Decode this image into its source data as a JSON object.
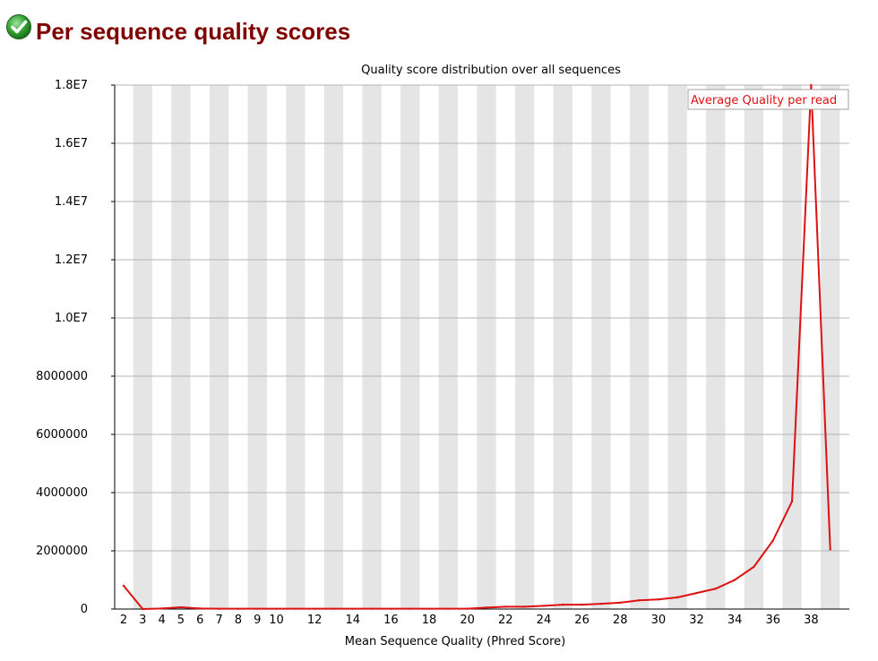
{
  "module": {
    "title": "Per sequence quality scores",
    "status_icon": "check-circle-icon",
    "status": "pass"
  },
  "colors": {
    "title": "#800000",
    "band": "#e5e5e5",
    "grid": "#b4b4b4",
    "line": "#dd1111",
    "icon_green": "#2fa12f"
  },
  "chart_data": {
    "type": "line",
    "title": "Quality score distribution over all sequences",
    "xlabel": "Mean Sequence Quality (Phred Score)",
    "ylabel": "",
    "x": [
      2,
      3,
      4,
      5,
      6,
      7,
      8,
      9,
      10,
      11,
      12,
      13,
      14,
      15,
      16,
      17,
      18,
      19,
      20,
      21,
      22,
      23,
      24,
      25,
      26,
      27,
      28,
      29,
      30,
      31,
      32,
      33,
      34,
      35,
      36,
      37,
      38,
      39
    ],
    "xlim": [
      2,
      39
    ],
    "x_tick_labels": [
      "2",
      "3",
      "4",
      "5",
      "6",
      "7",
      "8",
      "9",
      "10",
      "12",
      "14",
      "16",
      "18",
      "20",
      "22",
      "24",
      "26",
      "28",
      "30",
      "32",
      "34",
      "36",
      "38"
    ],
    "ylim": [
      0,
      18000000
    ],
    "y_tick_labels": [
      "0",
      "2000000",
      "4000000",
      "6000000",
      "8000000",
      "1.0E7",
      "1.2E7",
      "1.4E7",
      "1.6E7",
      "1.8E7"
    ],
    "series": [
      {
        "name": "Average Quality per read",
        "values": [
          800000,
          0,
          20000,
          60000,
          20000,
          10000,
          10000,
          10000,
          10000,
          10000,
          10000,
          10000,
          10000,
          10000,
          10000,
          10000,
          10000,
          10000,
          10000,
          50000,
          80000,
          80000,
          110000,
          150000,
          150000,
          180000,
          220000,
          300000,
          330000,
          400000,
          550000,
          700000,
          1000000,
          1450000,
          2350000,
          3700000,
          18000000,
          2050000
        ]
      }
    ],
    "grid": true,
    "alternating_bands": true,
    "legend_position": "top-right"
  }
}
